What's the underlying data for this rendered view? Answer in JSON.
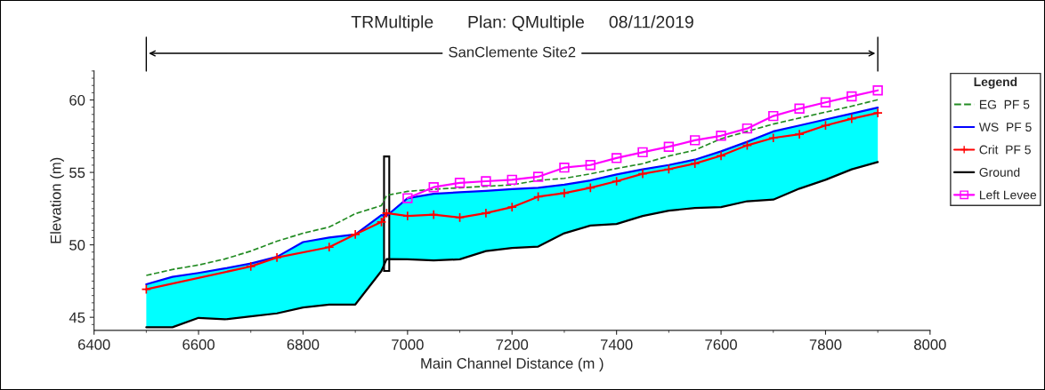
{
  "chart_data": {
    "type": "line",
    "title": "TRMultiple       Plan: QMultiple     08/11/2019",
    "xlabel": "Main Channel Distance (m )",
    "ylabel": "Elevation (m)",
    "legend_title": "Legend",
    "x": [
      6500,
      6550,
      6600,
      6650,
      6700,
      6750,
      6800,
      6850,
      6900,
      6950,
      6960,
      7000,
      7050,
      7100,
      7150,
      7200,
      7250,
      7300,
      7350,
      7400,
      7450,
      7500,
      7550,
      7600,
      7650,
      7700,
      7750,
      7800,
      7850,
      7900
    ],
    "series": [
      {
        "name": "EG  PF 5",
        "color": "#228b22",
        "line_style": "dashed",
        "values": [
          47.89,
          48.3,
          48.61,
          49.02,
          49.57,
          50.25,
          50.8,
          51.23,
          52.15,
          52.71,
          53.42,
          53.69,
          53.84,
          53.94,
          54.04,
          54.14,
          54.45,
          54.59,
          54.9,
          55.27,
          55.6,
          56.13,
          56.54,
          57.32,
          57.83,
          58.34,
          58.75,
          59.16,
          59.57,
          60.02
        ]
      },
      {
        "name": "WS  PF 5",
        "type": "area",
        "color": "#0000ff",
        "values": [
          47.28,
          47.79,
          48.06,
          48.37,
          48.71,
          49.17,
          50.19,
          50.5,
          50.72,
          52.05,
          52.0,
          53.22,
          53.53,
          53.63,
          53.73,
          53.84,
          53.94,
          54.15,
          54.45,
          54.86,
          55.21,
          55.51,
          55.88,
          56.45,
          57.11,
          57.83,
          58.24,
          58.65,
          59.06,
          59.47
        ]
      },
      {
        "name": "Crit  PF 5",
        "color": "#ff0000",
        "marker": "cross",
        "x": [
          6500,
          6700,
          6750,
          6850,
          6900,
          6950,
          6960,
          7000,
          7050,
          7100,
          7150,
          7200,
          7250,
          7300,
          7350,
          7400,
          7450,
          7500,
          7550,
          7600,
          7650,
          7700,
          7750,
          7800,
          7850,
          7900
        ],
        "values": [
          46.93,
          48.51,
          49.12,
          49.84,
          50.72,
          51.58,
          52.19,
          51.99,
          52.09,
          51.89,
          52.19,
          52.6,
          53.32,
          53.57,
          53.94,
          54.39,
          54.9,
          55.22,
          55.61,
          56.15,
          56.87,
          57.38,
          57.63,
          58.24,
          58.71,
          59.1
        ]
      },
      {
        "name": "Ground",
        "color": "#000000",
        "values": [
          44.31,
          44.31,
          44.96,
          44.86,
          45.06,
          45.27,
          45.68,
          45.88,
          45.88,
          48.2,
          49.02,
          49.0,
          48.92,
          49.0,
          49.57,
          49.78,
          49.88,
          50.8,
          51.33,
          51.44,
          51.99,
          52.36,
          52.55,
          52.61,
          53.01,
          53.12,
          53.88,
          54.49,
          55.21,
          55.72
        ]
      },
      {
        "name": "Left Levee",
        "color": "#ff00ff",
        "marker": "square",
        "x": [
          7000,
          7050,
          7100,
          7150,
          7200,
          7250,
          7300,
          7350,
          7400,
          7450,
          7500,
          7550,
          7600,
          7650,
          7700,
          7750,
          7800,
          7850,
          7900
        ],
        "values": [
          53.22,
          53.98,
          54.28,
          54.39,
          54.49,
          54.7,
          55.33,
          55.51,
          55.99,
          56.39,
          56.77,
          57.22,
          57.53,
          58.03,
          58.89,
          59.4,
          59.83,
          60.25,
          60.66
        ]
      },
      {
        "type": "bar",
        "color": "#ffffff",
        "x": [
          6960
        ],
        "base": [
          48.2
        ],
        "values": [
          7.9
        ]
      }
    ],
    "annotations": [
      "SanClemente Site2"
    ],
    "xlim": [
      6400,
      8000
    ],
    "xticks": [
      6400,
      6600,
      6800,
      7000,
      7200,
      7400,
      7600,
      7800,
      8000
    ],
    "ylim": [
      44.1,
      62
    ],
    "yticks": [
      45,
      50,
      55,
      60
    ],
    "grid": false,
    "legend": "right"
  }
}
